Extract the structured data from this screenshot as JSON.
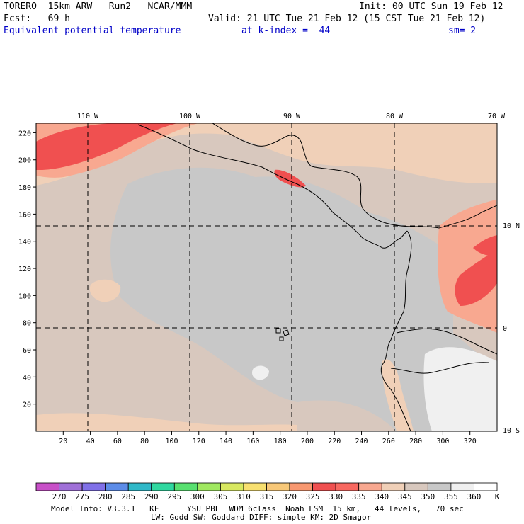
{
  "header": {
    "model": "TORERO",
    "resolution": "15km ARW",
    "run": "Run2",
    "org": "NCAR/MMM",
    "init": "Init: 00 UTC Sun 19 Feb 12",
    "fcst_label": "Fcst:",
    "fcst_hours": "69 h",
    "valid": "Valid: 21 UTC Tue 21 Feb 12 (15 CST Tue 21 Feb 12)",
    "field": "Equivalent potential temperature",
    "level": "at k-index =  44",
    "smoothing": "sm= 2"
  },
  "map": {
    "lon_labels": [
      "110 W",
      "100 W",
      "90 W",
      "80 W",
      "70 W"
    ],
    "lat_labels": [
      "10 N",
      "0",
      "10 S"
    ],
    "y_ticks": [
      "20",
      "40",
      "60",
      "80",
      "100",
      "120",
      "140",
      "160",
      "180",
      "200",
      "220"
    ],
    "x_ticks": [
      "20",
      "40",
      "60",
      "80",
      "100",
      "120",
      "140",
      "160",
      "180",
      "200",
      "220",
      "240",
      "260",
      "280",
      "300",
      "320"
    ],
    "background_color": "#d8c8be",
    "coast_color": "#000000"
  },
  "colorbar": {
    "labels": [
      "270",
      "275",
      "280",
      "285",
      "290",
      "295",
      "300",
      "305",
      "310",
      "315",
      "320",
      "325",
      "330",
      "335",
      "340",
      "345",
      "350",
      "355",
      "360"
    ],
    "unit": "K",
    "colors": [
      "#c850c8",
      "#a070d8",
      "#8070e8",
      "#5c8ce8",
      "#30b8c8",
      "#30d8a0",
      "#58e070",
      "#a0e860",
      "#d8e860",
      "#f8e070",
      "#f8c878",
      "#f89870",
      "#f05050",
      "#f86860",
      "#f8a890",
      "#f0d0b8",
      "#d8c8be",
      "#c8c8c8",
      "#f0f0f0",
      "#ffffff"
    ]
  },
  "footer": {
    "line1": "Model Info: V3.3.1   KF      YSU PBL  WDM 6class  Noah LSM  15 km,   44 levels,   70 sec",
    "line2": "LW: Godd SW: Goddard DIFF: simple KM: 2D Smagor"
  }
}
